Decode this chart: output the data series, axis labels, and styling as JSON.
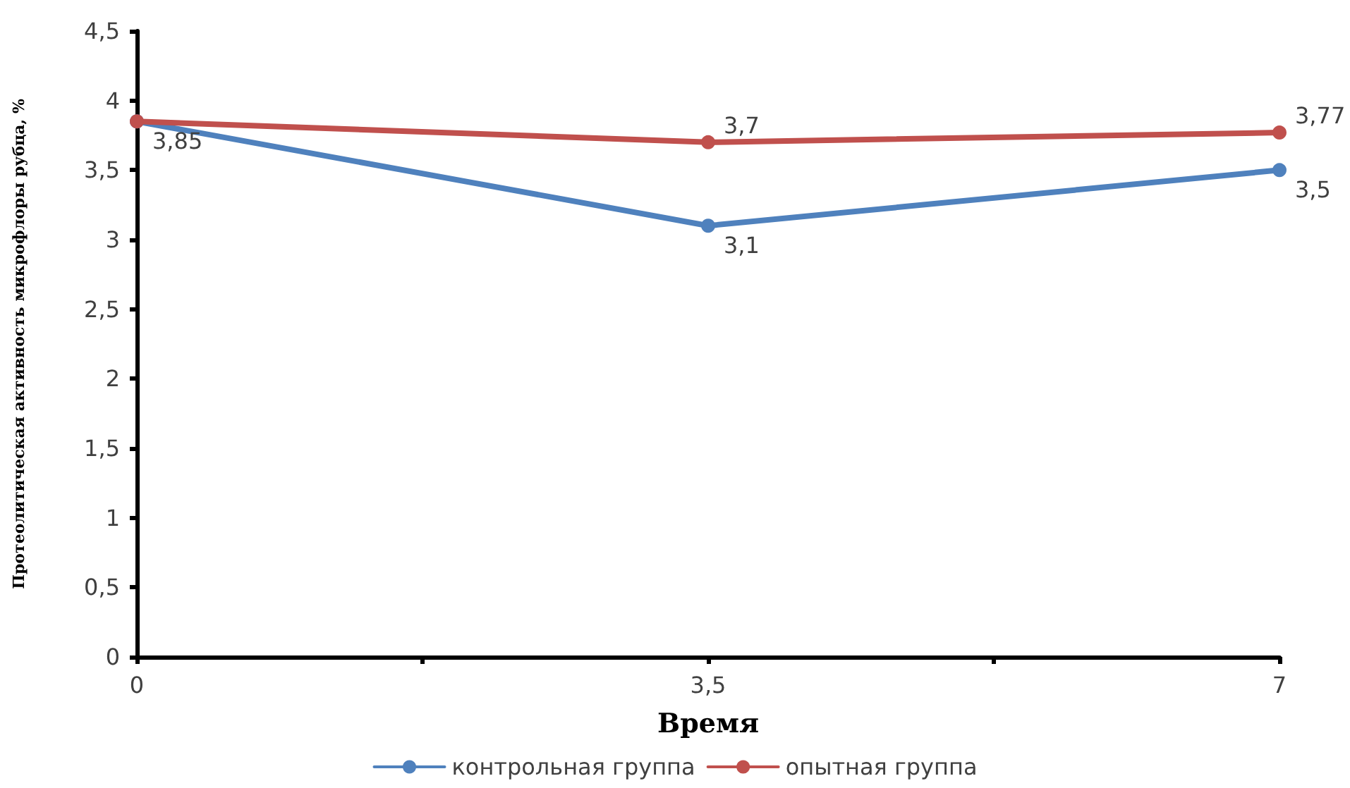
{
  "chart_data": {
    "type": "line",
    "xlabel": "Время",
    "ylabel": "Протеолитическая активность микрофлоры рубца, %",
    "x": [
      0,
      3.5,
      7
    ],
    "xlim": [
      0,
      7
    ],
    "xticks": [
      0,
      {
        "value": 1.75,
        "label": null
      },
      {
        "value": 3.5,
        "label": "3,5"
      },
      {
        "value": 5.25,
        "label": null
      },
      7
    ],
    "ylim": [
      0,
      4.5
    ],
    "yticks": [
      0,
      {
        "value": 0.5,
        "label": "0,5"
      },
      1,
      {
        "value": 1.5,
        "label": "1,5"
      },
      2,
      {
        "value": 2.5,
        "label": "2,5"
      },
      3,
      {
        "value": 3.5,
        "label": "3,5"
      },
      4,
      {
        "value": 4.5,
        "label": "4,5"
      }
    ],
    "series": [
      {
        "name": "контрольная группа",
        "color": "#4f81bd",
        "values": [
          3.85,
          3.1,
          3.5
        ],
        "value_labels": [
          "3,85",
          "3,1",
          "3,5"
        ]
      },
      {
        "name": "опытная группа",
        "color": "#c0504d",
        "values": [
          3.85,
          3.7,
          3.77
        ],
        "value_labels": [
          null,
          "3,7",
          "3,77"
        ]
      }
    ],
    "marker": "circle",
    "line_style": "solid",
    "legend": "bottom",
    "grid": false
  }
}
